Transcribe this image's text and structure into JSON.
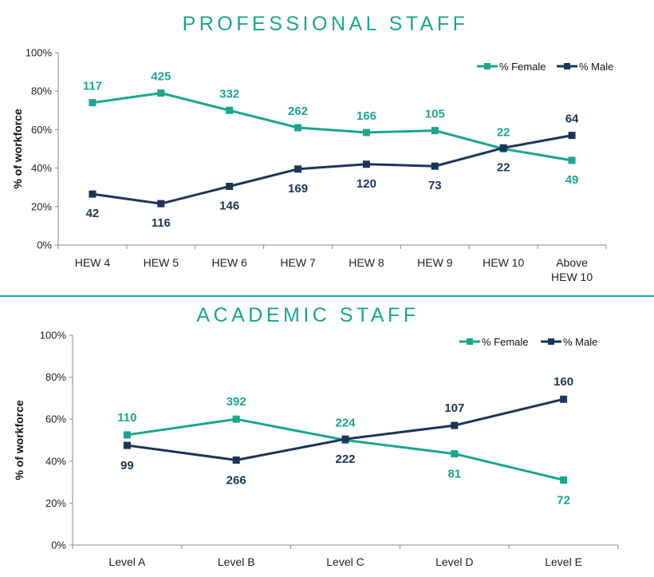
{
  "colors": {
    "female": "#1aa58f",
    "male": "#1c3559",
    "title": "#1aa58f",
    "axis": "#8a8a8a",
    "divider": "#1aa58f"
  },
  "chart_data": [
    {
      "type": "line",
      "title": "PROFESSIONAL STAFF",
      "ylabel": "% of workforce",
      "xlabel": "",
      "ylim": [
        0,
        100
      ],
      "yticks": [
        "0%",
        "20%",
        "40%",
        "60%",
        "80%",
        "100%"
      ],
      "categories": [
        "HEW 4",
        "HEW 5",
        "HEW 6",
        "HEW 7",
        "HEW 8",
        "HEW 9",
        "HEW 10",
        "Above HEW 10"
      ],
      "legend_position": "top-right",
      "grid": false,
      "series": [
        {
          "name": "% Female",
          "values": [
            74,
            79,
            70,
            61,
            58.5,
            59.5,
            50,
            44
          ],
          "labels": [
            "117",
            "425",
            "332",
            "262",
            "166",
            "105",
            "22",
            "49"
          ]
        },
        {
          "name": "% Male",
          "values": [
            26.5,
            21.5,
            30.5,
            39.5,
            42,
            41,
            50.5,
            57
          ],
          "labels": [
            "42",
            "116",
            "146",
            "169",
            "120",
            "73",
            "22",
            "64"
          ]
        }
      ]
    },
    {
      "type": "line",
      "title": "ACADEMIC STAFF",
      "ylabel": "% of workforce",
      "xlabel": "",
      "ylim": [
        0,
        100
      ],
      "yticks": [
        "0%",
        "20%",
        "40%",
        "60%",
        "80%",
        "100%"
      ],
      "categories": [
        "Level A",
        "Level B",
        "Level C",
        "Level D",
        "Level E"
      ],
      "legend_position": "top-right",
      "grid": false,
      "series": [
        {
          "name": "% Female",
          "values": [
            52.5,
            60,
            50,
            43.5,
            31
          ],
          "labels": [
            "110",
            "392",
            "224",
            "81",
            "72"
          ]
        },
        {
          "name": "% Male",
          "values": [
            47.5,
            40.5,
            50.5,
            57,
            69.5
          ],
          "labels": [
            "99",
            "266",
            "222",
            "107",
            "160"
          ]
        }
      ]
    }
  ]
}
